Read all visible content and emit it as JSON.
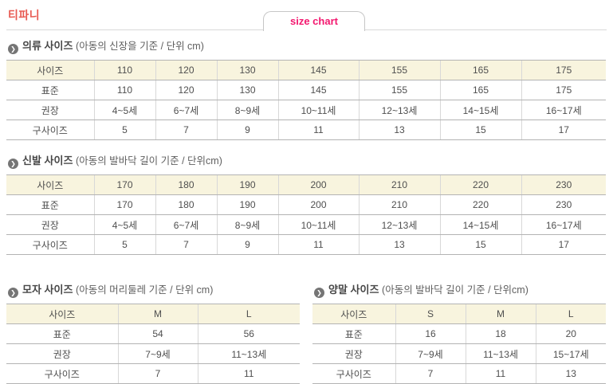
{
  "page": {
    "title": "티파니",
    "tab_label": "size chart"
  },
  "colors": {
    "brand": "#e85a52",
    "tab_text": "#f3186f",
    "table_header_bg": "#f8f4de",
    "row_border": "#b3b3b3",
    "column_border": "#d8d8d8",
    "bullet": "#757575",
    "text": "#4f4f4f"
  },
  "bullet_glyph": "❯",
  "sections": [
    {
      "id": "clothing",
      "title": "의류 사이즈",
      "subtitle": "(아동의 신장을 기준 / 단위 cm)",
      "table": {
        "header": [
          "사이즈",
          "110",
          "120",
          "130",
          "145",
          "155",
          "165",
          "175"
        ],
        "rows": [
          [
            "표준",
            "110",
            "120",
            "130",
            "145",
            "155",
            "165",
            "175"
          ],
          [
            "권장",
            "4~5세",
            "6~7세",
            "8~9세",
            "10~11세",
            "12~13세",
            "14~15세",
            "16~17세"
          ],
          [
            "구사이즈",
            "5",
            "7",
            "9",
            "11",
            "13",
            "15",
            "17"
          ]
        ]
      }
    },
    {
      "id": "shoes",
      "title": "신발 사이즈",
      "subtitle": "(아동의 발바닥 길이 기준 / 단위cm)",
      "table": {
        "header": [
          "사이즈",
          "170",
          "180",
          "190",
          "200",
          "210",
          "220",
          "230"
        ],
        "rows": [
          [
            "표준",
            "170",
            "180",
            "190",
            "200",
            "210",
            "220",
            "230"
          ],
          [
            "권장",
            "4~5세",
            "6~7세",
            "8~9세",
            "10~11세",
            "12~13세",
            "14~15세",
            "16~17세"
          ],
          [
            "구사이즈",
            "5",
            "7",
            "9",
            "11",
            "13",
            "15",
            "17"
          ]
        ]
      }
    },
    {
      "id": "hats",
      "title": "모자 사이즈",
      "subtitle": "(아동의 머리둘레 기준 / 단위 cm)",
      "table": {
        "header": [
          "사이즈",
          "M",
          "L"
        ],
        "rows": [
          [
            "표준",
            "54",
            "56"
          ],
          [
            "권장",
            "7~9세",
            "11~13세"
          ],
          [
            "구사이즈",
            "7",
            "11"
          ]
        ]
      }
    },
    {
      "id": "socks",
      "title": "양말 사이즈",
      "subtitle": "(아동의 발바닥 길이 기준 / 단위cm)",
      "table": {
        "header": [
          "사이즈",
          "S",
          "M",
          "L"
        ],
        "rows": [
          [
            "표준",
            "16",
            "18",
            "20"
          ],
          [
            "권장",
            "7~9세",
            "11~13세",
            "15~17세"
          ],
          [
            "구사이즈",
            "7",
            "11",
            "13"
          ]
        ]
      }
    }
  ]
}
